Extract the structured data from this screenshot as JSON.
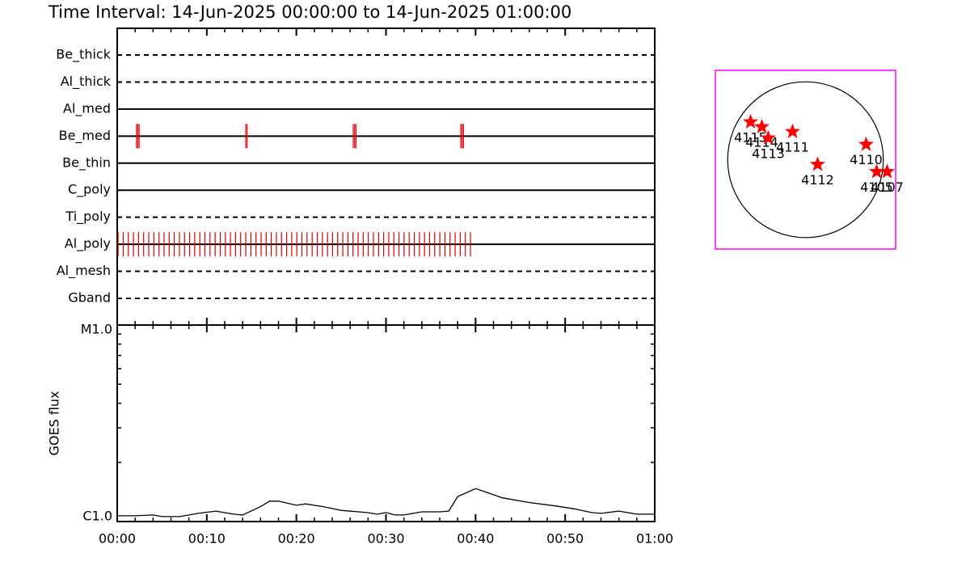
{
  "chart_data": [
    {
      "type": "timeline",
      "title": "Time Interval: 14-Jun-2025 00:00:00 to 14-Jun-2025 01:00:00",
      "xlim": [
        0,
        60
      ],
      "xticks": [
        0,
        10,
        20,
        30,
        40,
        50,
        60
      ],
      "xminorticks": [
        2,
        4,
        6,
        8,
        12,
        14,
        16,
        18,
        22,
        24,
        26,
        28,
        32,
        34,
        36,
        38,
        42,
        44,
        46,
        48,
        52,
        54,
        56,
        58
      ],
      "marker_color": "#dd0000",
      "rows": [
        {
          "name": "Be_thick",
          "style": "dashed",
          "times": []
        },
        {
          "name": "Al_thick",
          "style": "dashed",
          "times": []
        },
        {
          "name": "Al_med",
          "style": "solid",
          "times": []
        },
        {
          "name": "Be_med",
          "style": "solid",
          "times": [
            2.15,
            2.3,
            2.45,
            14.35,
            14.5,
            26.35,
            26.5,
            26.65,
            38.35,
            38.5,
            38.65
          ]
        },
        {
          "name": "Be_thin",
          "style": "solid",
          "times": []
        },
        {
          "name": "C_poly",
          "style": "solid",
          "times": []
        },
        {
          "name": "Ti_poly",
          "style": "dashed",
          "times": []
        },
        {
          "name": "Al_poly",
          "style": "solid",
          "times": [
            0.1,
            0.67,
            1.24,
            1.81,
            2.38,
            2.95,
            3.52,
            4.09,
            4.66,
            5.23,
            5.8,
            6.37,
            6.94,
            7.51,
            8.08,
            8.65,
            9.22,
            9.79,
            10.36,
            10.93,
            11.5,
            12.07,
            12.64,
            13.21,
            13.78,
            14.35,
            14.92,
            15.49,
            16.06,
            16.63,
            17.2,
            17.77,
            18.34,
            18.91,
            19.48,
            20.05,
            20.62,
            21.19,
            21.76,
            22.33,
            22.9,
            23.47,
            24.04,
            24.61,
            25.18,
            25.75,
            26.32,
            26.89,
            27.46,
            28.03,
            28.6,
            29.17,
            29.74,
            30.31,
            30.88,
            31.45,
            32.02,
            32.59,
            33.16,
            33.73,
            34.3,
            34.87,
            35.44,
            36.01,
            36.58,
            37.15,
            37.72,
            38.29,
            38.86,
            39.43
          ]
        },
        {
          "name": "Al_mesh",
          "style": "dashed",
          "times": []
        },
        {
          "name": "Gband",
          "style": "dashed",
          "times": []
        }
      ]
    },
    {
      "type": "line",
      "ylabel": "GOES flux",
      "log_y": true,
      "color": "#000000",
      "xlim": [
        0,
        60
      ],
      "xticks": [
        {
          "value": 0,
          "label": "00:00"
        },
        {
          "value": 10,
          "label": "00:10"
        },
        {
          "value": 20,
          "label": "00:20"
        },
        {
          "value": 30,
          "label": "00:30"
        },
        {
          "value": 40,
          "label": "00:40"
        },
        {
          "value": 50,
          "label": "00:50"
        },
        {
          "value": 60,
          "label": "01:00"
        }
      ],
      "xminorticks": [
        2,
        4,
        6,
        8,
        12,
        14,
        16,
        18,
        22,
        24,
        26,
        28,
        32,
        34,
        36,
        38,
        42,
        44,
        46,
        48,
        52,
        54,
        56,
        58
      ],
      "ylim": [
        1,
        10
      ],
      "yticks": [
        {
          "value": 1,
          "label": "C1.0"
        },
        {
          "value": 10,
          "label": "M1.0"
        }
      ],
      "yminorticks": [
        2,
        3,
        4,
        5,
        6,
        7,
        8,
        9
      ],
      "x": [
        0,
        2,
        4,
        5,
        7,
        9,
        11,
        13,
        14,
        16,
        17,
        18,
        20,
        21,
        23,
        25,
        28,
        29,
        30,
        31,
        32,
        34,
        36,
        37,
        38,
        40,
        41,
        43,
        46,
        49,
        51,
        53,
        54,
        56,
        57,
        58,
        60
      ],
      "values": [
        1.07,
        1.07,
        1.08,
        1.06,
        1.06,
        1.1,
        1.13,
        1.09,
        1.08,
        1.19,
        1.27,
        1.27,
        1.21,
        1.23,
        1.19,
        1.14,
        1.11,
        1.09,
        1.11,
        1.08,
        1.08,
        1.12,
        1.12,
        1.13,
        1.34,
        1.47,
        1.42,
        1.32,
        1.25,
        1.2,
        1.16,
        1.11,
        1.1,
        1.13,
        1.11,
        1.09,
        1.09
      ]
    },
    {
      "type": "scatter",
      "xlim": [
        -1100,
        1100
      ],
      "ylim": [
        -1100,
        1100
      ],
      "disk_radius": 950,
      "frame_color": "#ff00ff",
      "color": "#ff0000",
      "labels": [
        "4115",
        "4114",
        "4113",
        "4111",
        "4112",
        "4110",
        "4105",
        "4107"
      ],
      "x": [
        -671,
        -533,
        -454,
        -158,
        148,
        740,
        868,
        996
      ],
      "y": [
        464,
        404,
        266,
        345,
        -59,
        187,
        -148,
        -148
      ]
    }
  ]
}
